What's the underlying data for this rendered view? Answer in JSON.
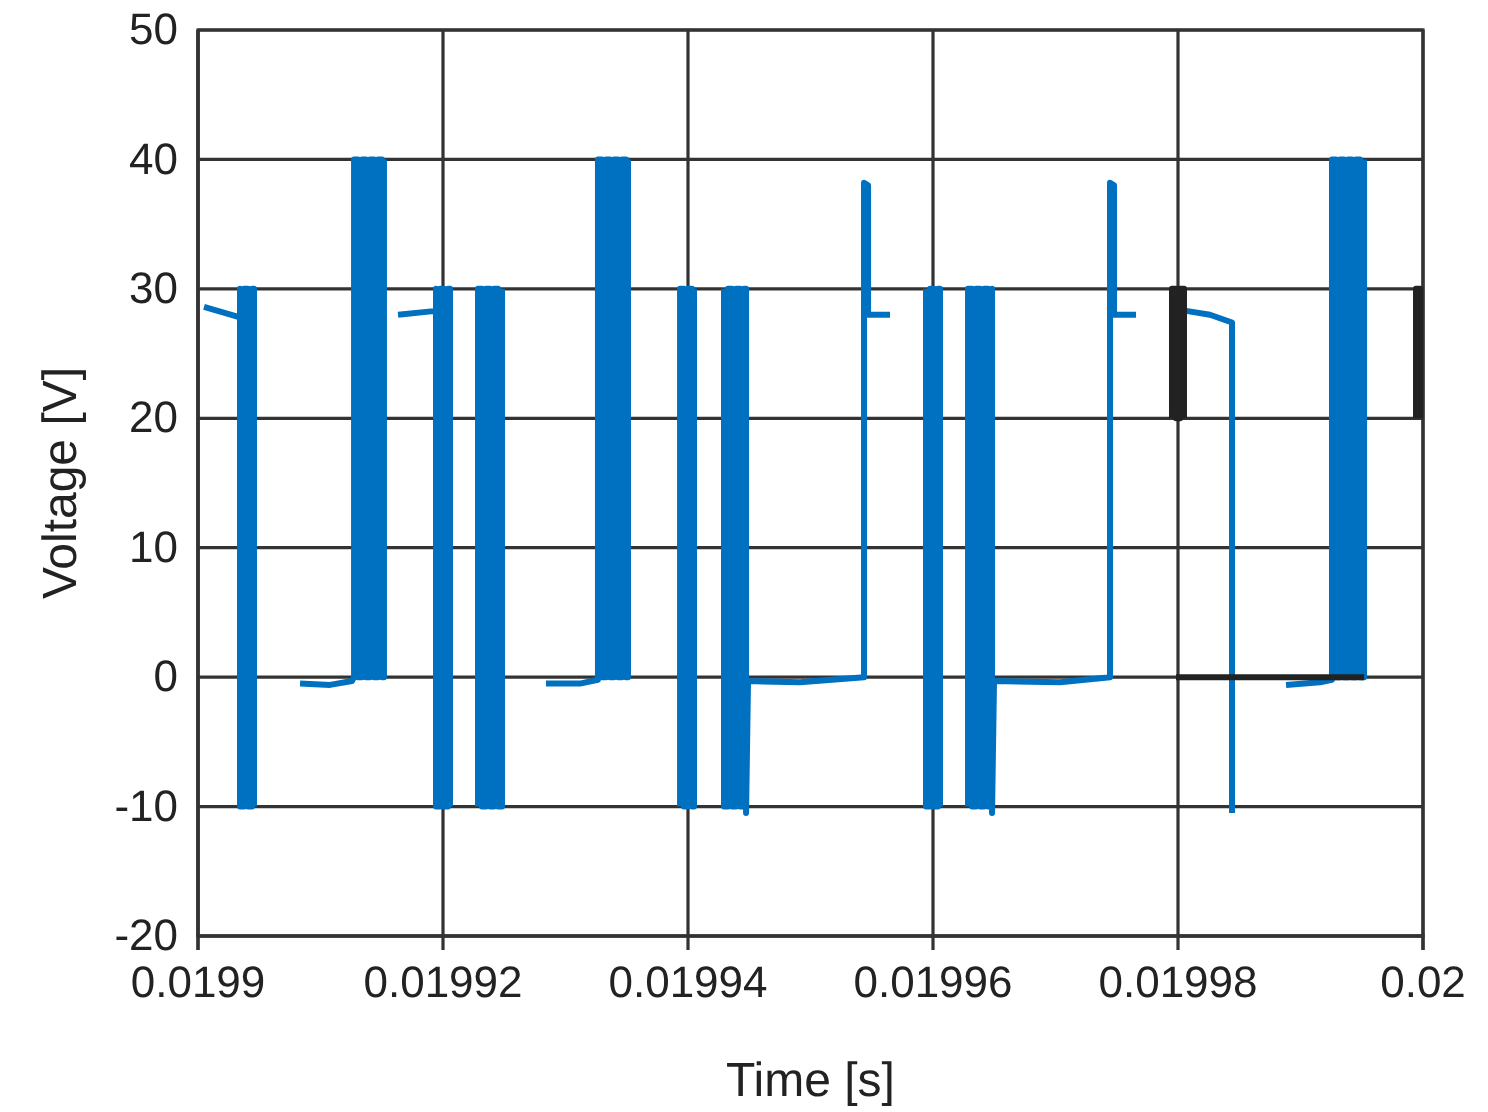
{
  "chart_data": {
    "type": "line",
    "xlabel": "Time [s]",
    "ylabel": "Voltage [V]",
    "xlim": [
      0.0199,
      0.02
    ],
    "xticks": [
      0.0199,
      0.01992,
      0.01994,
      0.01996,
      0.01998,
      0.02
    ],
    "ylim": [
      -20,
      50
    ],
    "yticks": [
      -20,
      -10,
      0,
      10,
      20,
      30,
      40,
      50
    ],
    "grid": true,
    "series": [
      {
        "color": "#0070c0",
        "x": [
          0.01990049,
          0.01990343,
          0.01990343,
          0.01990343,
          0.01990376,
          0.01990376,
          0.01990408,
          0.01990408,
          0.01990441,
          0.01990441,
          0.01990457,
          0.01990457
        ],
        "values": [
          28.6,
          27.8,
          30,
          -10,
          -10,
          30,
          30,
          -10,
          -10,
          30,
          30,
          -10
        ]
      },
      {
        "color": "#0070c0",
        "x": [
          0.01990833,
          0.01991078,
          0.01991257,
          0.01991274,
          0.01991274,
          0.01991306,
          0.01991306,
          0.01991339,
          0.01991339,
          0.01991371,
          0.01991371,
          0.01991404,
          0.01991404,
          0.01991437,
          0.01991437,
          0.01991469,
          0.01991469,
          0.01991502,
          0.01991502,
          0.01991518,
          0.01991518
        ],
        "values": [
          -0.5,
          -0.6,
          -0.3,
          0,
          40,
          40,
          0,
          0,
          40,
          40,
          0,
          0,
          40,
          40,
          0,
          0,
          40,
          40,
          0,
          0,
          40
        ]
      },
      {
        "color": "#0070c0",
        "x": [
          0.01991633,
          0.01991943,
          0.01991943,
          0.01991943,
          0.01991976,
          0.01991976,
          0.01992008,
          0.01992008,
          0.01992041,
          0.01992041,
          0.01992057,
          0.01992057
        ],
        "values": [
          28,
          28.3,
          30,
          -10,
          -10,
          30,
          30,
          -10,
          -10,
          30,
          30,
          -10
        ]
      },
      {
        "color": "#0070c0",
        "x": [
          0.01992286,
          0.01992286,
          0.01992318,
          0.01992318,
          0.01992351,
          0.01992351,
          0.01992384,
          0.01992384,
          0.01992416,
          0.01992416,
          0.01992449,
          0.01992449,
          0.01992482,
          0.01992482
        ],
        "values": [
          -10,
          30,
          30,
          -10,
          -10,
          30,
          30,
          -10,
          -10,
          30,
          30,
          -10,
          -10,
          30
        ]
      },
      {
        "color": "#0070c0",
        "x": [
          0.01992841,
          0.01993118,
          0.01993265,
          0.01993265,
          0.01993298,
          0.01993298,
          0.01993331,
          0.01993331,
          0.01993363,
          0.01993363,
          0.01993396,
          0.01993396,
          0.01993429,
          0.01993429,
          0.01993461,
          0.01993461,
          0.01993494,
          0.01993494,
          0.0199351,
          0.0199351
        ],
        "values": [
          -0.5,
          -0.5,
          -0.2,
          40,
          40,
          0,
          0,
          40,
          40,
          0,
          0,
          40,
          40,
          0,
          0,
          40,
          40,
          0,
          0,
          40
        ]
      },
      {
        "color": "#0070c0",
        "x": [
          0.01993935,
          0.01993935,
          0.01993967,
          0.01993967,
          0.01994,
          0.01994,
          0.01994033,
          0.01994033,
          0.01994049,
          0.01994049
        ],
        "values": [
          -10,
          30,
          30,
          -10,
          -10,
          30,
          30,
          -10,
          -10,
          30
        ]
      },
      {
        "color": "#0070c0",
        "x": [
          0.01994294,
          0.01994294,
          0.01994327,
          0.01994327,
          0.01994359,
          0.01994359,
          0.01994392,
          0.01994392,
          0.01994425,
          0.01994425,
          0.01994457,
          0.01994457,
          0.01994474,
          0.01994474,
          0.0199449,
          0.01994914,
          0.01995437,
          0.01995437,
          0.0199547,
          0.0199547,
          0.01995649
        ],
        "values": [
          30,
          -10,
          -10,
          30,
          30,
          -10,
          -10,
          30,
          30,
          -10,
          -10,
          30,
          30,
          -10.5,
          -0.3,
          -0.4,
          0,
          38.2,
          38,
          28,
          28
        ]
      },
      {
        "color": "#0070c0",
        "x": [
          0.01995943,
          0.01995943,
          0.01995976,
          0.01995976,
          0.01996008,
          0.01996008,
          0.01996041,
          0.01996041,
          0.01996057,
          0.01996057
        ],
        "values": [
          30,
          -10,
          -10,
          30,
          30,
          -10,
          -10,
          30,
          30,
          -10
        ]
      },
      {
        "color": "#0070c0",
        "x": [
          0.01996286,
          0.01996286,
          0.01996319,
          0.01996319,
          0.01996351,
          0.01996351,
          0.01996384,
          0.01996384,
          0.01996417,
          0.01996417,
          0.01996449,
          0.01996449,
          0.01996482,
          0.01996482,
          0.01996482,
          0.01996498,
          0.01997037,
          0.01997445,
          0.01997445,
          0.01997478,
          0.01997478,
          0.01997657
        ],
        "values": [
          -10,
          30,
          30,
          -10,
          -10,
          30,
          30,
          -10,
          -10,
          30,
          30,
          -10,
          -10,
          30,
          -10.5,
          -0.3,
          -0.4,
          0,
          38.2,
          38,
          28,
          28
        ]
      },
      {
        "color": "#0070c0",
        "x": [
          0.01998066,
          0.01998261,
          0.01998441,
          0.01998441
        ],
        "values": [
          28.3,
          28,
          27.4,
          -10.5
        ]
      },
      {
        "color": "#0070c0",
        "x": [
          0.01998882,
          0.01999159,
          0.01999257,
          0.01999257,
          0.0199929,
          0.0199929,
          0.01999323,
          0.01999323,
          0.01999355,
          0.01999355,
          0.01999388,
          0.01999388,
          0.01999421,
          0.01999421,
          0.01999453,
          0.01999453,
          0.01999486,
          0.01999486,
          0.01999519,
          0.01999519
        ],
        "values": [
          -0.6,
          -0.4,
          -0.2,
          40,
          40,
          0,
          0,
          40,
          40,
          0,
          0,
          40,
          40,
          0,
          0,
          40,
          40,
          0,
          0,
          40
        ]
      },
      {
        "color": "#222222",
        "x": [
          0.01997951,
          0.01997951,
          0.01997984,
          0.01997984,
          0.01998017,
          0.01998017,
          0.01998049,
          0.01998049
        ],
        "values": [
          20,
          30,
          30,
          20,
          20,
          30,
          30,
          20
        ]
      },
      {
        "color": "#222222",
        "x": [
          0.01997984,
          0.01999519
        ],
        "values": [
          0,
          0
        ]
      },
      {
        "color": "#222222",
        "x": [
          0.01999943,
          0.01999943,
          0.01999976,
          0.01999976
        ],
        "values": [
          20,
          30,
          30,
          20
        ]
      }
    ]
  }
}
